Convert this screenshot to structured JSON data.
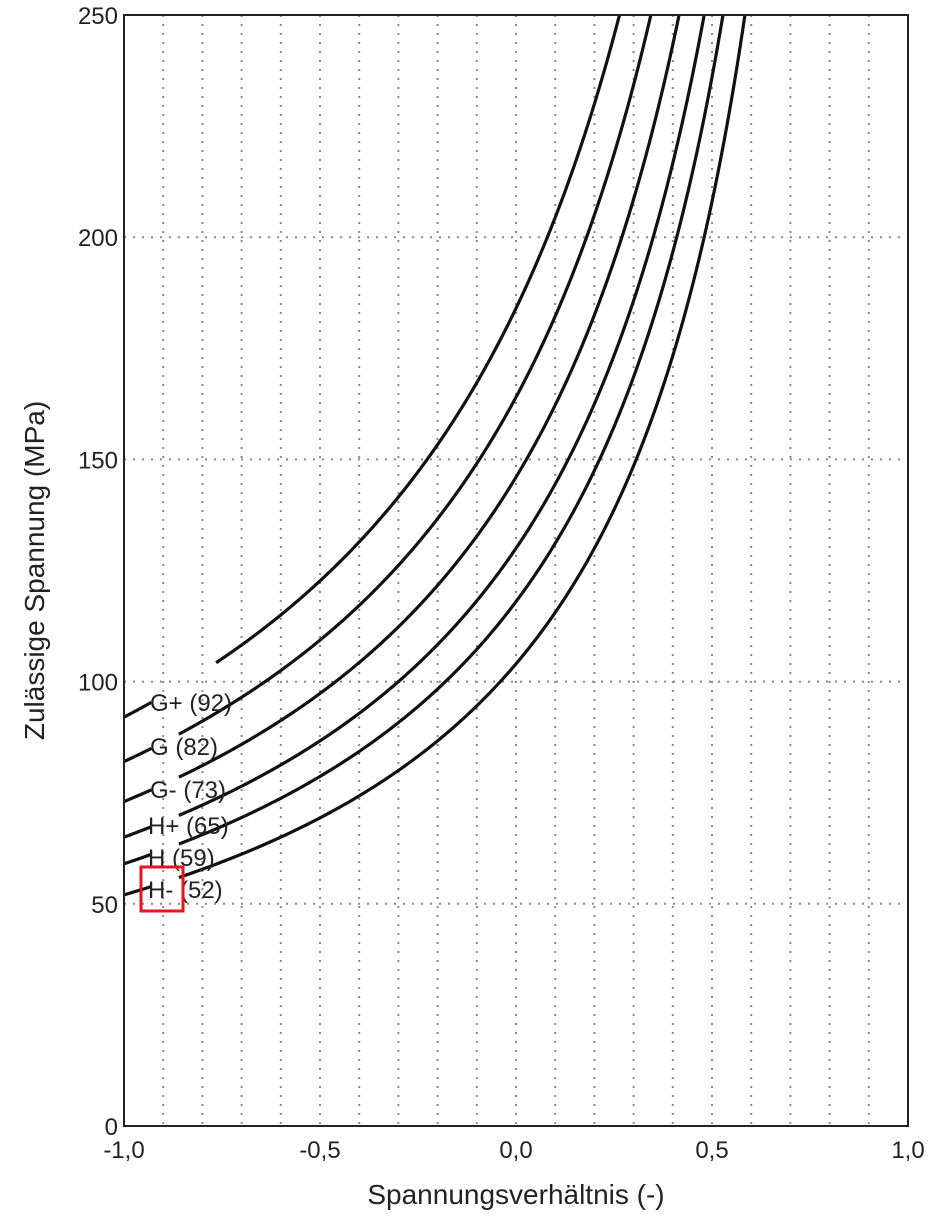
{
  "chart_data": {
    "type": "line",
    "title": "",
    "xlabel": "Spannungsverhältnis (-)",
    "ylabel": "Zulässige Spannung (MPa)",
    "xlim": [
      -1.0,
      1.0
    ],
    "ylim": [
      0,
      250
    ],
    "x_ticks": [
      -1.0,
      -0.5,
      0.0,
      0.5,
      1.0
    ],
    "x_tick_labels": [
      "-1,0",
      "-0,5",
      "0,0",
      "0,5",
      "1,0"
    ],
    "y_ticks": [
      0,
      50,
      100,
      150,
      200,
      250
    ],
    "y_tick_labels": [
      "0",
      "50",
      "100",
      "150",
      "200",
      "250"
    ],
    "grid": "dotted",
    "legend": "inline labels at left end of curves",
    "series": [
      {
        "name": "G+ (92)",
        "sigma_at_minus1": 92,
        "x_at_top": 0.41
      },
      {
        "name": "G (82)",
        "sigma_at_minus1": 82,
        "x_at_top": 0.48
      },
      {
        "name": "G- (73)",
        "sigma_at_minus1": 73,
        "x_at_top": 0.54
      },
      {
        "name": "H+ (65)",
        "sigma_at_minus1": 65,
        "x_at_top": 0.59
      },
      {
        "name": "H (59)",
        "sigma_at_minus1": 59,
        "x_at_top": 0.64
      },
      {
        "name": "H- (52)",
        "sigma_at_minus1": 52,
        "x_at_top": 0.68
      }
    ],
    "highlight": {
      "series": "H- (52)",
      "part": "H-",
      "color": "#e8141b"
    }
  },
  "colors": {
    "curve": "#111111",
    "axis": "#222222",
    "grid": "#8a8a8a",
    "highlight": "#e8141b"
  }
}
